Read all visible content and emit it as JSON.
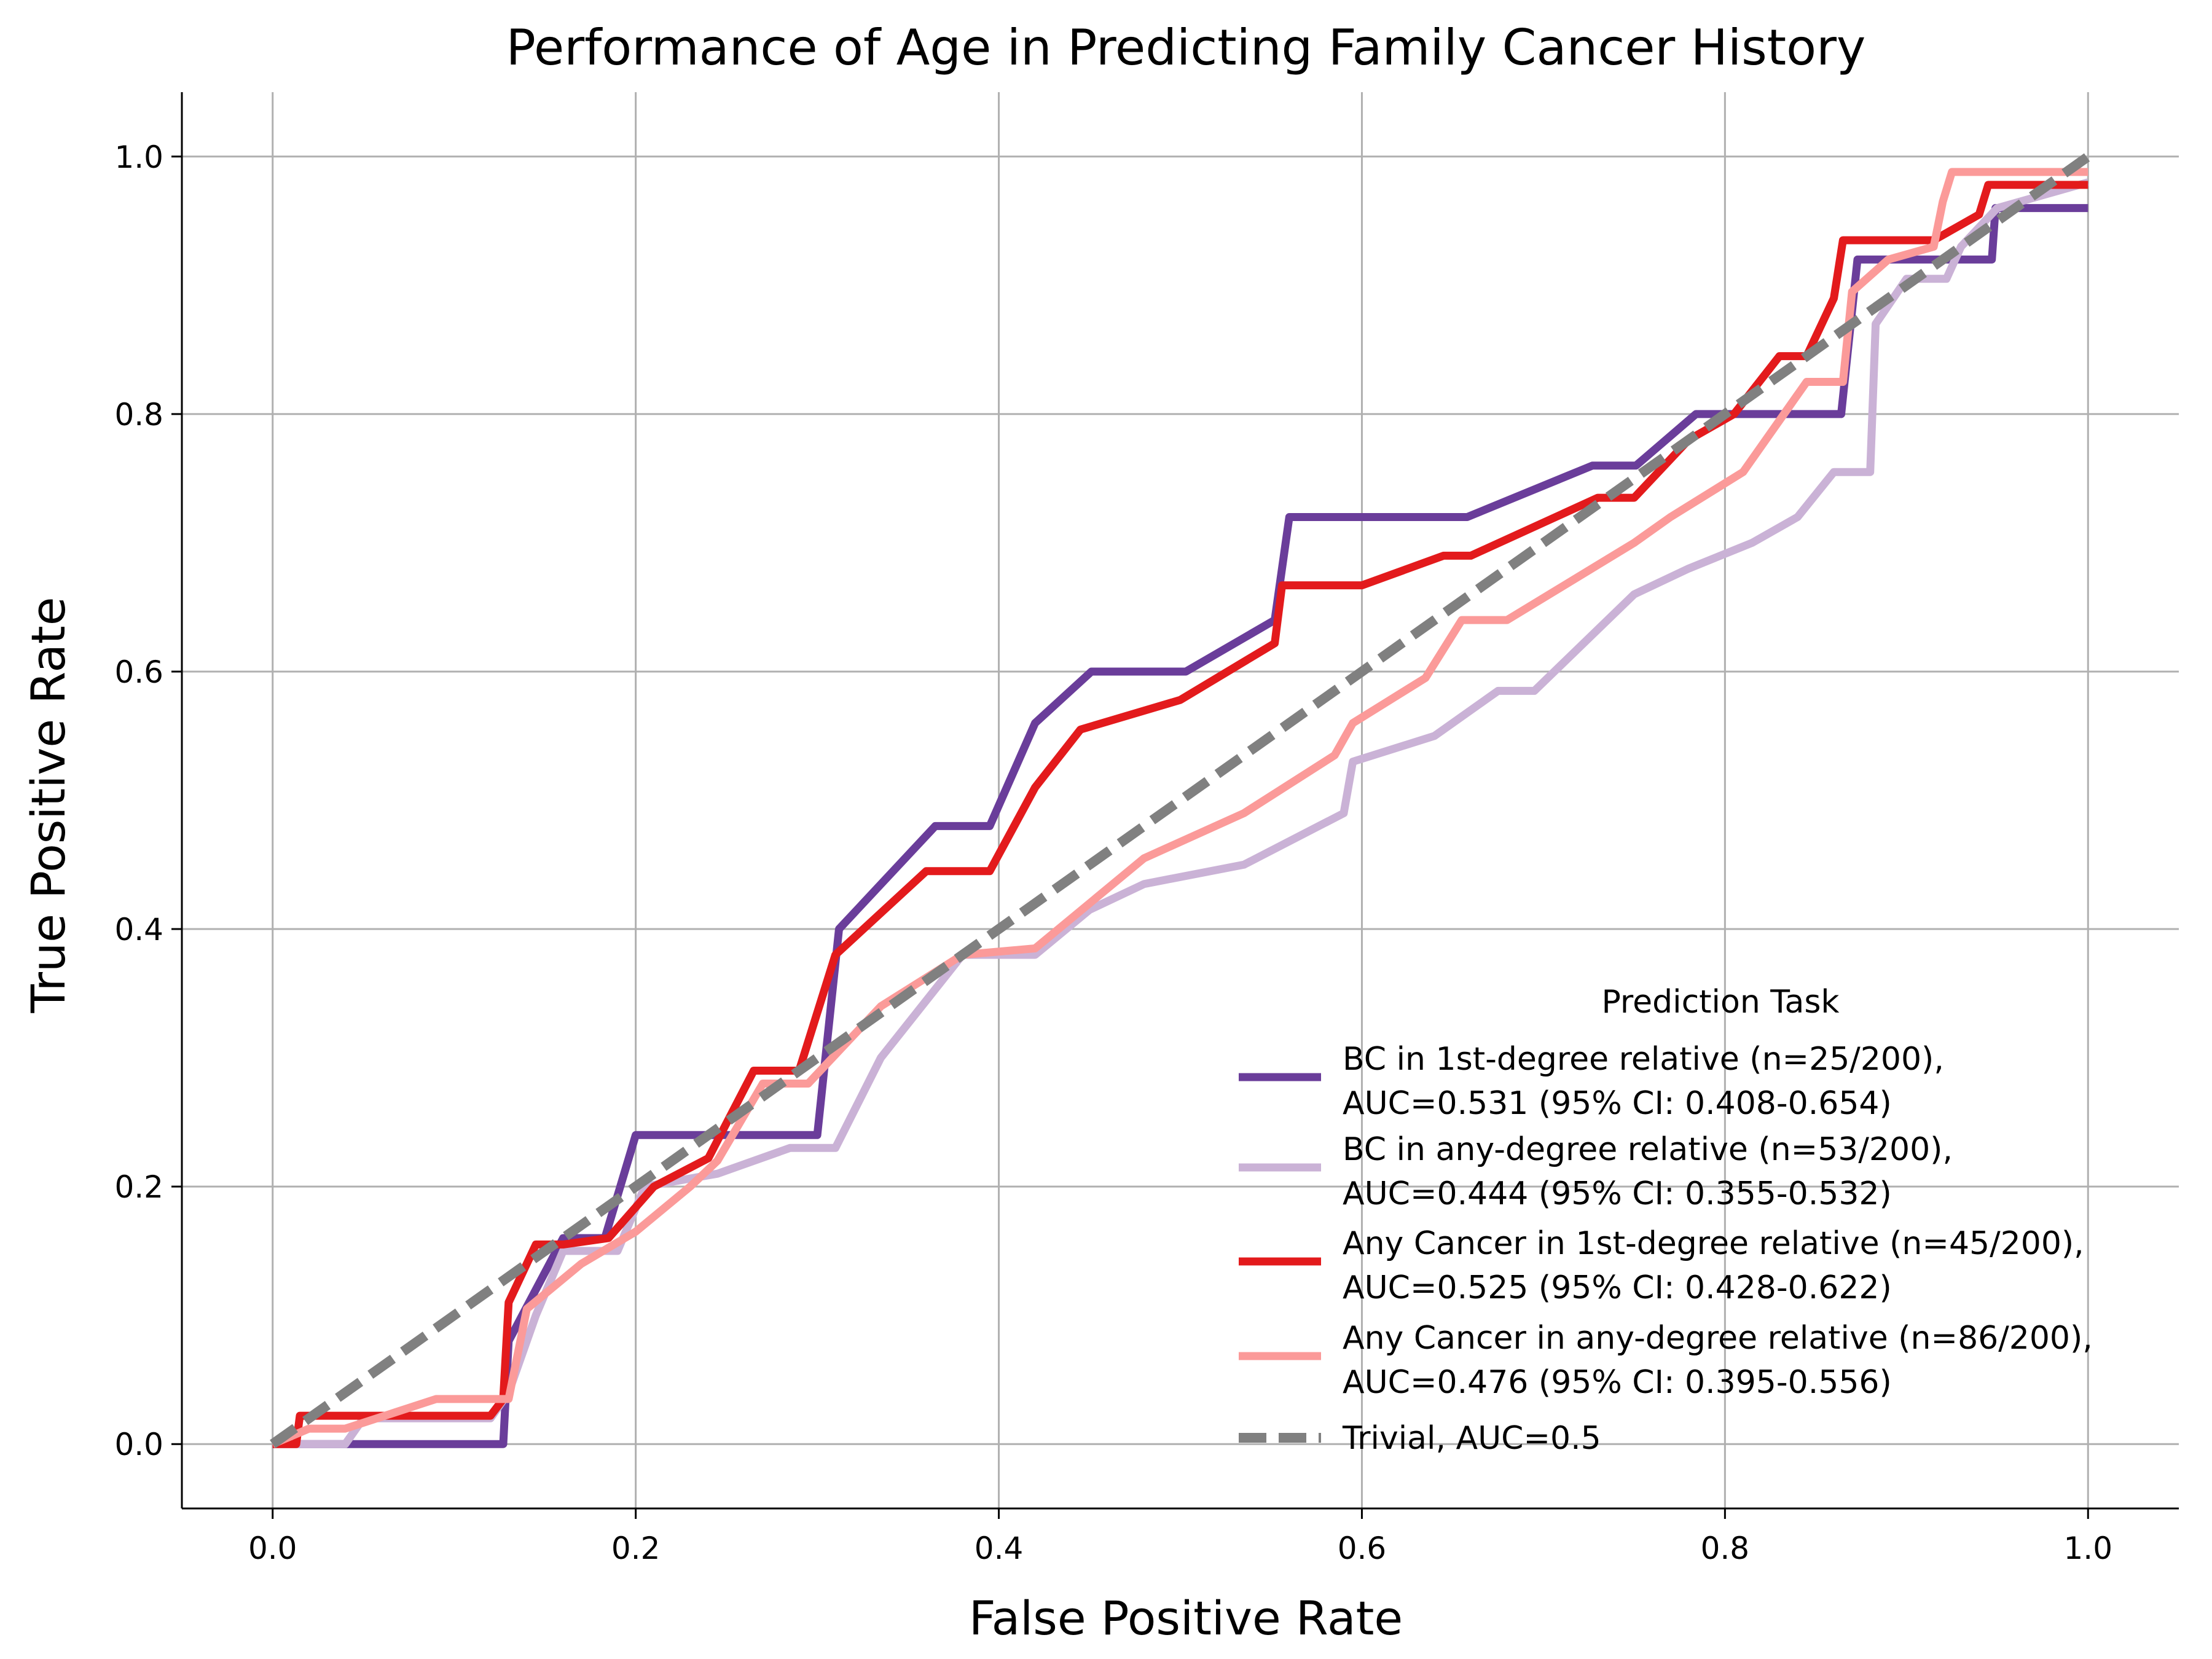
{
  "chart_data": {
    "type": "line",
    "title": "Performance of Age in Predicting Family Cancer History",
    "xlabel": "False Positive Rate",
    "ylabel": "True Positive Rate",
    "xlim": [
      -0.05,
      1.05
    ],
    "ylim": [
      -0.05,
      1.05
    ],
    "xticks": [
      "0.0",
      "0.2",
      "0.4",
      "0.6",
      "0.8",
      "1.0"
    ],
    "yticks": [
      "0.0",
      "0.2",
      "0.4",
      "0.6",
      "0.8",
      "1.0"
    ],
    "grid": true,
    "legend": {
      "title": "Prediction Task",
      "placement": "lower-right"
    },
    "series": [
      {
        "name": "BC in 1st-degree relative (n=25/200),",
        "name2": "AUC=0.531 (95% CI: 0.408-0.654)",
        "color": "#6a3d9a",
        "dash": false,
        "x": [
          0,
          0.006,
          0.127,
          0.13,
          0.145,
          0.16,
          0.183,
          0.2,
          0.3,
          0.312,
          0.365,
          0.395,
          0.42,
          0.451,
          0.503,
          0.552,
          0.56,
          0.658,
          0.727,
          0.751,
          0.784,
          0.84,
          0.864,
          0.873,
          0.947,
          0.949,
          1.0
        ],
        "y": [
          0,
          0,
          0,
          0.08,
          0.12,
          0.16,
          0.16,
          0.24,
          0.24,
          0.4,
          0.48,
          0.48,
          0.56,
          0.6,
          0.6,
          0.64,
          0.72,
          0.72,
          0.76,
          0.76,
          0.8,
          0.8,
          0.8,
          0.92,
          0.92,
          0.96,
          0.96
        ]
      },
      {
        "name": "BC in any-degree relative (n=53/200),",
        "name2": "AUC=0.444 (95% CI: 0.355-0.532)",
        "color": "#cab2d6",
        "dash": false,
        "x": [
          0,
          0.04,
          0.05,
          0.12,
          0.13,
          0.145,
          0.16,
          0.19,
          0.205,
          0.245,
          0.285,
          0.31,
          0.335,
          0.38,
          0.42,
          0.45,
          0.48,
          0.535,
          0.59,
          0.595,
          0.64,
          0.675,
          0.695,
          0.75,
          0.78,
          0.815,
          0.84,
          0.86,
          0.88,
          0.883,
          0.9,
          0.922,
          0.93,
          0.95,
          1.0
        ],
        "y": [
          0,
          0,
          0.02,
          0.02,
          0.04,
          0.1,
          0.15,
          0.15,
          0.2,
          0.21,
          0.23,
          0.23,
          0.3,
          0.38,
          0.38,
          0.415,
          0.435,
          0.45,
          0.49,
          0.53,
          0.55,
          0.585,
          0.585,
          0.66,
          0.68,
          0.7,
          0.72,
          0.755,
          0.755,
          0.87,
          0.905,
          0.905,
          0.93,
          0.96,
          0.98
        ]
      },
      {
        "name": "Any Cancer in 1st-degree relative (n=45/200),",
        "name2": "AUC=0.525 (95% CI: 0.428-0.622)",
        "color": "#e31a1c",
        "dash": false,
        "x": [
          0,
          0.013,
          0.015,
          0.12,
          0.127,
          0.13,
          0.145,
          0.16,
          0.185,
          0.21,
          0.24,
          0.265,
          0.29,
          0.31,
          0.36,
          0.395,
          0.42,
          0.445,
          0.5,
          0.552,
          0.556,
          0.6,
          0.645,
          0.66,
          0.73,
          0.75,
          0.78,
          0.805,
          0.83,
          0.845,
          0.86,
          0.865,
          0.905,
          0.915,
          0.94,
          0.945,
          1.0
        ],
        "y": [
          0,
          0,
          0.022,
          0.022,
          0.035,
          0.11,
          0.155,
          0.155,
          0.16,
          0.2,
          0.222,
          0.29,
          0.29,
          0.38,
          0.445,
          0.445,
          0.51,
          0.555,
          0.578,
          0.622,
          0.667,
          0.667,
          0.69,
          0.69,
          0.735,
          0.735,
          0.78,
          0.8,
          0.845,
          0.845,
          0.89,
          0.935,
          0.935,
          0.935,
          0.955,
          0.978,
          0.978
        ]
      },
      {
        "name": "Any Cancer in any-degree relative (n=86/200),",
        "name2": "AUC=0.476 (95% CI: 0.395-0.556)",
        "color": "#fb9a99",
        "dash": false,
        "x": [
          0,
          0.02,
          0.04,
          0.09,
          0.13,
          0.135,
          0.14,
          0.17,
          0.2,
          0.23,
          0.245,
          0.27,
          0.295,
          0.335,
          0.38,
          0.42,
          0.48,
          0.535,
          0.585,
          0.595,
          0.635,
          0.655,
          0.68,
          0.75,
          0.77,
          0.81,
          0.845,
          0.865,
          0.87,
          0.89,
          0.915,
          0.92,
          0.925,
          1.0
        ],
        "y": [
          0,
          0.012,
          0.012,
          0.035,
          0.035,
          0.07,
          0.105,
          0.14,
          0.165,
          0.2,
          0.22,
          0.28,
          0.28,
          0.34,
          0.38,
          0.385,
          0.455,
          0.49,
          0.535,
          0.56,
          0.595,
          0.64,
          0.64,
          0.7,
          0.72,
          0.755,
          0.825,
          0.825,
          0.895,
          0.92,
          0.93,
          0.965,
          0.988,
          0.988
        ]
      },
      {
        "name": "Trivial, AUC=0.5",
        "name2": "",
        "color": "#808080",
        "dash": true,
        "x": [
          0,
          1
        ],
        "y": [
          0,
          1
        ]
      }
    ]
  }
}
